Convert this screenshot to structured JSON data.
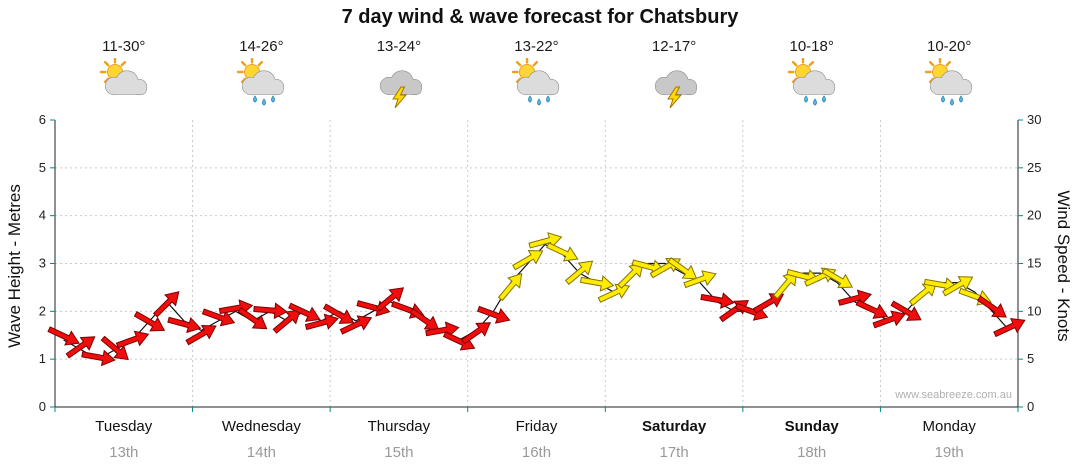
{
  "chart_data": {
    "type": "wind-arrows",
    "title": "7 day wind & wave forecast for Chatsbury",
    "ylabel_left": "Wave Height - Metres",
    "ylabel_right": "Wind Speed - Knots",
    "ylim_left": [
      0,
      6
    ],
    "ylim_right": [
      0,
      30
    ],
    "yticks_left": [
      0,
      1,
      2,
      3,
      4,
      5,
      6
    ],
    "yticks_right": [
      0,
      5,
      10,
      15,
      20,
      25,
      30
    ],
    "grid": true,
    "legend": false,
    "tick_color": "#008b8b",
    "wind_color_rule": {
      "threshold_knots": 12,
      "below": "#ef0d0d",
      "at_or_above": "#ffec00"
    },
    "days": [
      {
        "name": "Tuesday",
        "date": "13th",
        "temp": "11-30°",
        "icon": "sun-cloud",
        "bold": false
      },
      {
        "name": "Wednesday",
        "date": "14th",
        "temp": "14-26°",
        "icon": "sun-cloud-rain",
        "bold": false
      },
      {
        "name": "Thursday",
        "date": "15th",
        "temp": "13-24°",
        "icon": "cloud-storm",
        "bold": false
      },
      {
        "name": "Friday",
        "date": "16th",
        "temp": "13-22°",
        "icon": "sun-cloud-rain",
        "bold": false
      },
      {
        "name": "Saturday",
        "date": "17th",
        "temp": "12-17°",
        "icon": "cloud-storm",
        "bold": true
      },
      {
        "name": "Sunday",
        "date": "18th",
        "temp": "10-18°",
        "icon": "sun-cloud-rain",
        "bold": true
      },
      {
        "name": "Monday",
        "date": "19th",
        "temp": "10-20°",
        "icon": "sun-cloud-rain",
        "bold": false
      }
    ],
    "points_per_day": 8,
    "wind_speed_knots": [
      7,
      6,
      5,
      6,
      7,
      9,
      11,
      9,
      8,
      9,
      10,
      9,
      10,
      9,
      10,
      9,
      10,
      9,
      10,
      11,
      10,
      9,
      8,
      7,
      8,
      10,
      13,
      15,
      17,
      16,
      14,
      13,
      12,
      14,
      15,
      15,
      14,
      13,
      11,
      10,
      10,
      11,
      13,
      14,
      14,
      13,
      11,
      10,
      9,
      10,
      12,
      13,
      13,
      12,
      10,
      8
    ],
    "wind_direction_deg": [
      25,
      -35,
      10,
      40,
      -20,
      30,
      -45,
      15,
      -30,
      20,
      -10,
      35,
      5,
      -40,
      25,
      -15,
      30,
      -25,
      15,
      -40,
      20,
      35,
      -10,
      25,
      -35,
      20,
      -50,
      -30,
      -15,
      25,
      -40,
      10,
      -25,
      -45,
      15,
      -30,
      35,
      -20,
      10,
      -35,
      20,
      -30,
      -50,
      15,
      -25,
      30,
      -15,
      25,
      -20,
      30,
      -40,
      10,
      -30,
      20,
      35,
      -25
    ],
    "wave_height_m": [
      1.4,
      1.2,
      1.0,
      1.2,
      1.4,
      1.8,
      2.2,
      1.8,
      1.6,
      1.8,
      2.0,
      1.8,
      2.0,
      1.8,
      2.0,
      1.8,
      2.0,
      1.8,
      2.0,
      2.2,
      2.0,
      1.8,
      1.6,
      1.4,
      1.6,
      2.0,
      2.6,
      3.0,
      3.4,
      3.2,
      2.8,
      2.6,
      2.4,
      2.8,
      3.0,
      3.0,
      2.8,
      2.6,
      2.2,
      2.0,
      2.0,
      2.2,
      2.6,
      2.8,
      2.8,
      2.6,
      2.2,
      2.0,
      1.8,
      2.0,
      2.4,
      2.6,
      2.6,
      2.4,
      2.0,
      1.6
    ],
    "watermark": "www.seabreeze.com.au"
  }
}
